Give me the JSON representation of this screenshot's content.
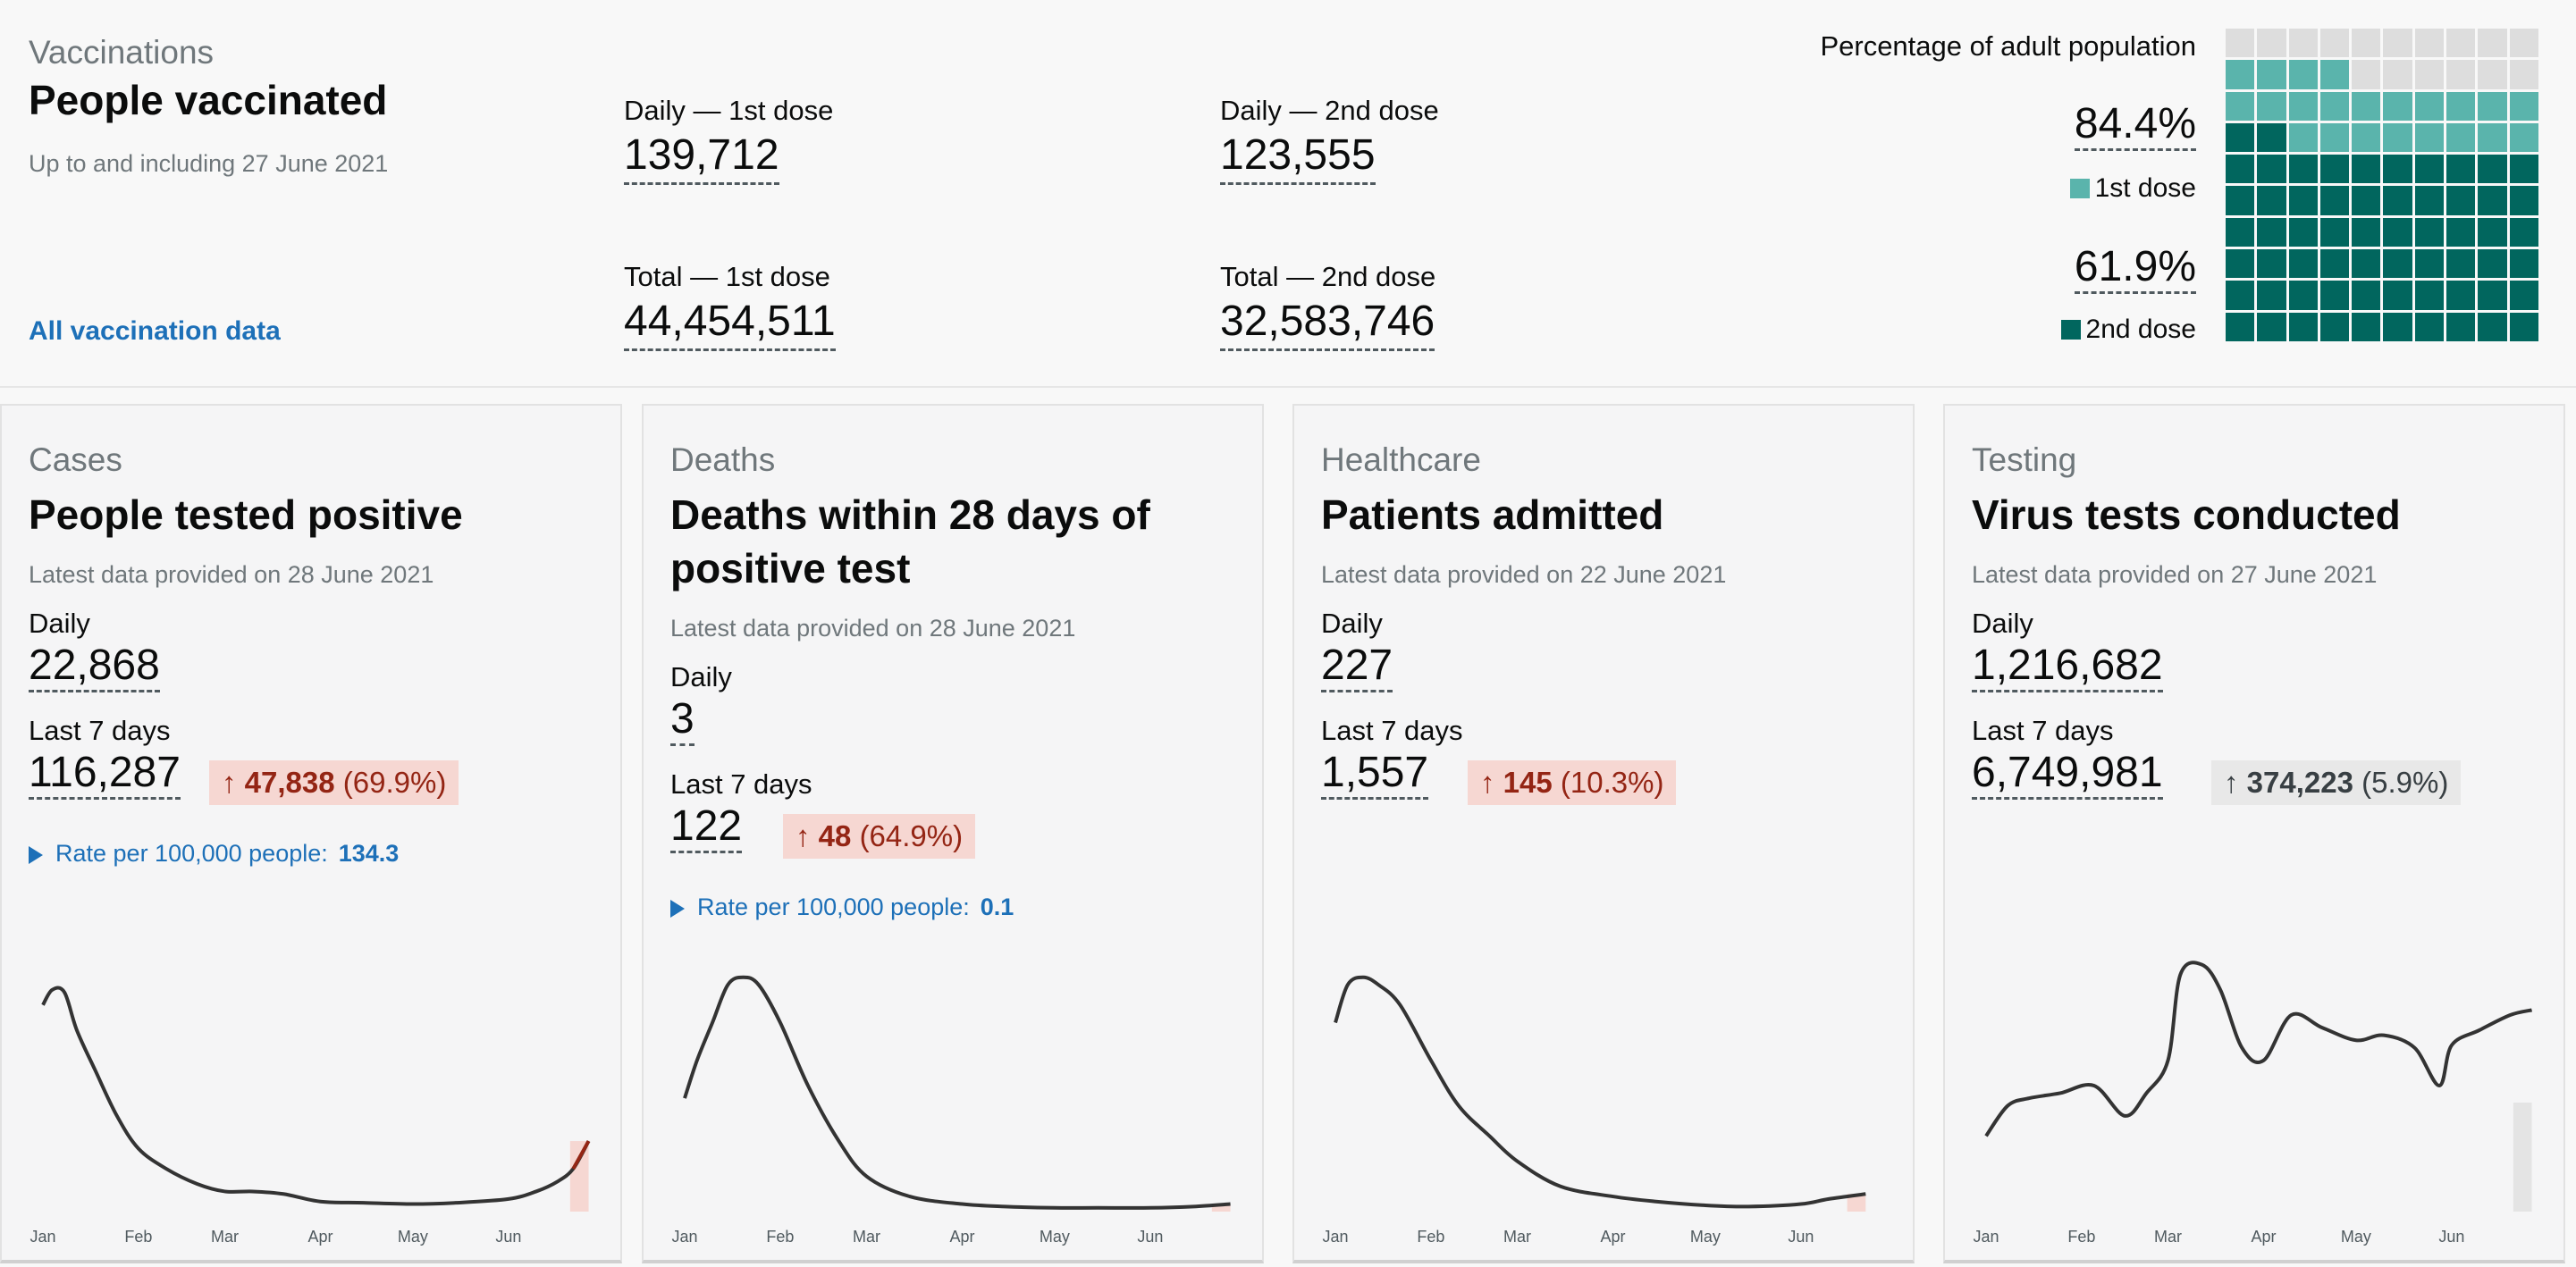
{
  "vaccinations": {
    "caption": "Vaccinations",
    "title": "People vaccinated",
    "subtitle": "Up to and including 27 June 2021",
    "link": "All vaccination data",
    "daily_first_label": "Daily — 1st dose",
    "daily_first_value": "139,712",
    "daily_second_label": "Daily — 2nd dose",
    "daily_second_value": "123,555",
    "total_first_label": "Total — 1st dose",
    "total_first_value": "44,454,511",
    "total_second_label": "Total — 2nd dose",
    "total_second_value": "32,583,746",
    "waffle": {
      "title": "Percentage of adult population",
      "first_pct": "84.4%",
      "first_label": "1st dose",
      "second_pct": "61.9%",
      "second_label": "2nd dose",
      "first_fraction": 0.844,
      "second_fraction": 0.619,
      "colors": {
        "first": "#5ab4ac",
        "second": "#01665e",
        "empty": "#dddddd"
      }
    }
  },
  "cards": [
    {
      "caption": "Cases",
      "title": "People tested positive",
      "date": "Latest data provided on 28 June 2021",
      "daily_label": "Daily",
      "daily_value": "22,868",
      "week_label": "Last 7 days",
      "week_value": "116,287",
      "change_arrow": "↑",
      "change_value": "47,838",
      "change_pct": "(69.9%)",
      "change_state": "up",
      "rate_label": "Rate per 100,000 people:",
      "rate_value": "134.3"
    },
    {
      "caption": "Deaths",
      "title": "Deaths within 28 days of positive test",
      "date": "Latest data provided on 28 June 2021",
      "daily_label": "Daily",
      "daily_value": "3",
      "week_label": "Last 7 days",
      "week_value": "122",
      "change_arrow": "↑",
      "change_value": "48",
      "change_pct": "(64.9%)",
      "change_state": "up",
      "rate_label": "Rate per 100,000 people:",
      "rate_value": "0.1"
    },
    {
      "caption": "Healthcare",
      "title": "Patients admitted",
      "date": "Latest data provided on 22 June 2021",
      "daily_label": "Daily",
      "daily_value": "227",
      "week_label": "Last 7 days",
      "week_value": "1,557",
      "change_arrow": "↑",
      "change_value": "145",
      "change_pct": "(10.3%)",
      "change_state": "up"
    },
    {
      "caption": "Testing",
      "title": "Virus tests conducted",
      "date": "Latest data provided on 27 June 2021",
      "daily_label": "Daily",
      "daily_value": "1,216,682",
      "week_label": "Last 7 days",
      "week_value": "6,749,981",
      "change_arrow": "↑",
      "change_value": "374,223",
      "change_pct": "(5.9%)",
      "change_state": "neutral"
    }
  ],
  "chart_data": [
    {
      "type": "line",
      "x_tick_labels": [
        "Jan",
        "Feb",
        "Mar",
        "Apr",
        "May",
        "Jun"
      ],
      "x": [
        "Jan 1",
        "Jan 4",
        "Jan 8",
        "Jan 12",
        "Jan 18",
        "Jan 25",
        "Feb 1",
        "Feb 10",
        "Feb 20",
        "Mar 1",
        "Mar 10",
        "Mar 20",
        "Apr 1",
        "Apr 15",
        "May 1",
        "May 15",
        "Jun 1",
        "Jun 10",
        "Jun 17",
        "Jun 22",
        "Jun 27"
      ],
      "values": [
        0.82,
        0.88,
        0.87,
        0.72,
        0.56,
        0.38,
        0.25,
        0.17,
        0.11,
        0.08,
        0.08,
        0.07,
        0.04,
        0.035,
        0.03,
        0.035,
        0.05,
        0.08,
        0.12,
        0.17,
        0.28
      ],
      "highlight": "last 7 days",
      "ylim": [
        0,
        1
      ]
    },
    {
      "type": "line",
      "x_tick_labels": [
        "Jan",
        "Feb",
        "Mar",
        "Apr",
        "May",
        "Jun"
      ],
      "x": [
        "Jan 1",
        "Jan 5",
        "Jan 10",
        "Jan 15",
        "Jan 20",
        "Jan 25",
        "Feb 1",
        "Feb 10",
        "Feb 20",
        "Mar 1",
        "Mar 15",
        "Apr 1",
        "Apr 15",
        "May 1",
        "May 15",
        "Jun 1",
        "Jun 15",
        "Jun 27"
      ],
      "values": [
        0.45,
        0.6,
        0.75,
        0.9,
        0.93,
        0.9,
        0.75,
        0.5,
        0.28,
        0.14,
        0.06,
        0.03,
        0.02,
        0.015,
        0.015,
        0.015,
        0.02,
        0.03
      ],
      "highlight": "last 7 days",
      "ylim": [
        0,
        1
      ]
    },
    {
      "type": "line",
      "x_tick_labels": [
        "Jan",
        "Feb",
        "Mar",
        "Apr",
        "May",
        "Jun"
      ],
      "x": [
        "Jan 1",
        "Jan 5",
        "Jan 10",
        "Jan 15",
        "Jan 22",
        "Feb 1",
        "Feb 10",
        "Feb 20",
        "Mar 1",
        "Mar 15",
        "Apr 1",
        "Apr 15",
        "May 1",
        "May 15",
        "Jun 1",
        "Jun 10",
        "Jun 22"
      ],
      "values": [
        0.75,
        0.9,
        0.93,
        0.9,
        0.82,
        0.6,
        0.42,
        0.3,
        0.2,
        0.1,
        0.06,
        0.04,
        0.025,
        0.02,
        0.03,
        0.05,
        0.07
      ],
      "highlight": "last 7 days",
      "ylim": [
        0,
        1
      ]
    },
    {
      "type": "line",
      "x_tick_labels": [
        "Jan",
        "Feb",
        "Mar",
        "Apr",
        "May",
        "Jun"
      ],
      "x": [
        "Jan 1",
        "Jan 8",
        "Jan 15",
        "Jan 25",
        "Feb 5",
        "Feb 15",
        "Feb 22",
        "Mar 1",
        "Mar 5",
        "Mar 12",
        "Mar 18",
        "Mar 25",
        "Apr 1",
        "Apr 10",
        "Apr 20",
        "May 1",
        "May 10",
        "May 20",
        "May 28",
        "Jun 1",
        "Jun 10",
        "Jun 20",
        "Jun 27"
      ],
      "values": [
        0.3,
        0.42,
        0.45,
        0.47,
        0.5,
        0.38,
        0.47,
        0.6,
        0.94,
        0.98,
        0.88,
        0.65,
        0.6,
        0.78,
        0.73,
        0.68,
        0.7,
        0.65,
        0.5,
        0.66,
        0.72,
        0.78,
        0.8
      ],
      "highlight": "last 7 days",
      "ylim": [
        0,
        1
      ]
    }
  ]
}
